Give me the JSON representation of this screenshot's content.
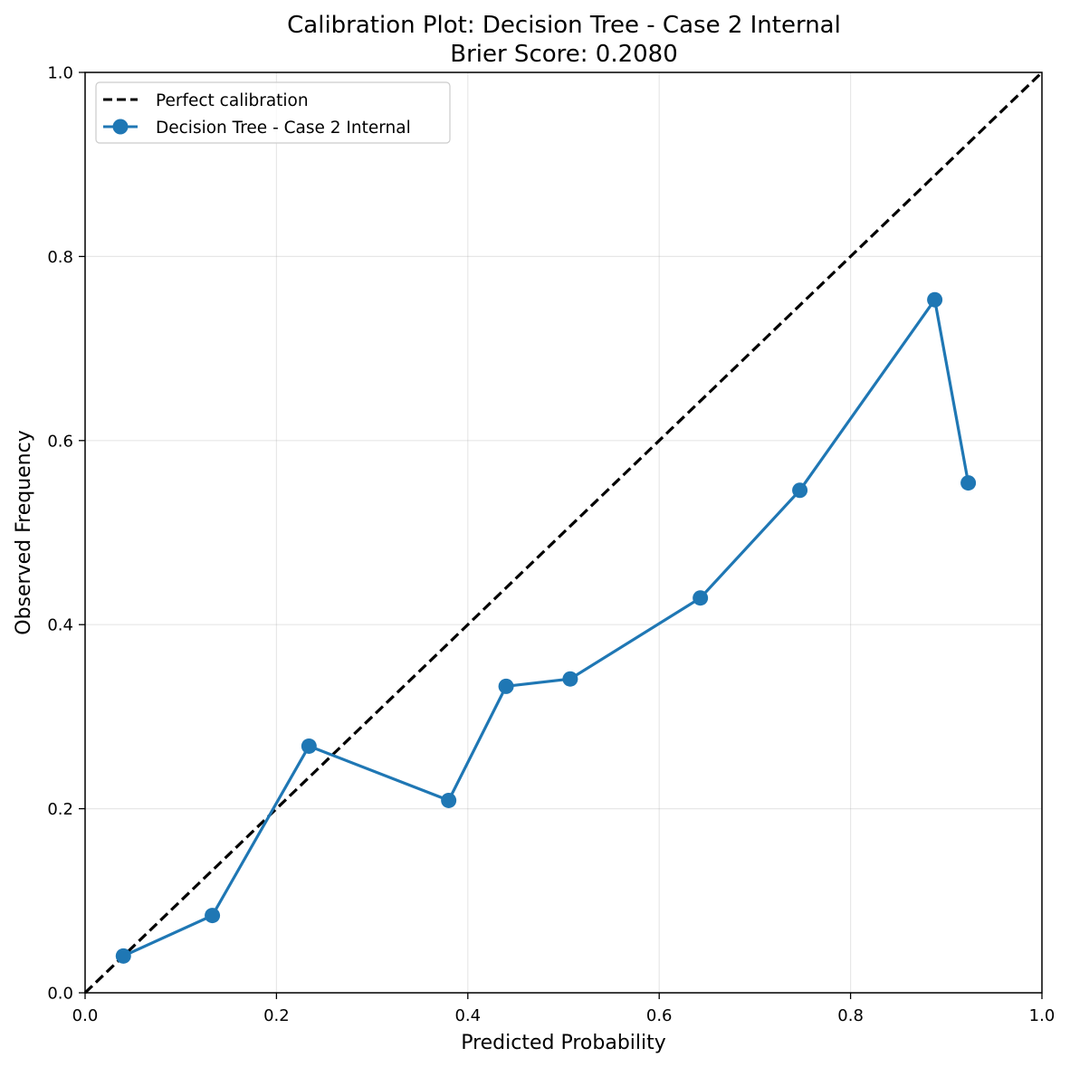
{
  "chart_data": {
    "type": "line",
    "title": "Calibration Plot: Decision Tree - Case 2 Internal",
    "subtitle": "Brier Score: 0.2080",
    "xlabel": "Predicted Probability",
    "ylabel": "Observed Frequency",
    "xlim": [
      0.0,
      1.0
    ],
    "ylim": [
      0.0,
      1.0
    ],
    "xticks": [
      "0.0",
      "0.2",
      "0.4",
      "0.6",
      "0.8",
      "1.0"
    ],
    "yticks": [
      "0.0",
      "0.2",
      "0.4",
      "0.6",
      "0.8",
      "1.0"
    ],
    "grid": true,
    "legend_position": "top-left",
    "series": [
      {
        "name": "Perfect calibration",
        "style": "dashed",
        "color": "#000000",
        "x": [
          0.0,
          1.0
        ],
        "y": [
          0.0,
          1.0
        ]
      },
      {
        "name": "Decision Tree - Case 2 Internal",
        "style": "solid-markers",
        "color": "#1f77b4",
        "x": [
          0.04,
          0.133,
          0.234,
          0.38,
          0.44,
          0.507,
          0.643,
          0.747,
          0.888,
          0.923
        ],
        "y": [
          0.04,
          0.084,
          0.268,
          0.209,
          0.333,
          0.341,
          0.429,
          0.546,
          0.753,
          0.554
        ]
      }
    ]
  }
}
